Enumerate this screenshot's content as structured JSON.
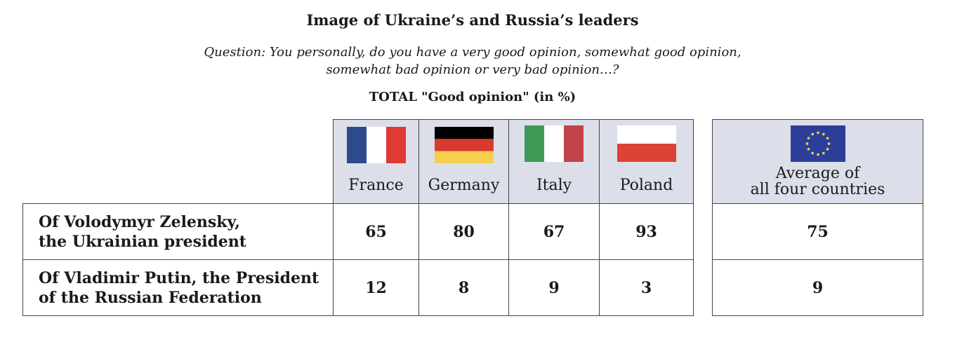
{
  "title": "Image of Ukraine’s and Russia’s leaders",
  "question_line1": "Question: You personally, do you have a very good opinion, somewhat good opinion,",
  "question_line2": "somewhat bad opinion or very bad opinion…?",
  "subtitle": "TOTAL \"Good opinion\" (in %)",
  "colors": {
    "header_bg": "#dcdfe9",
    "france": [
      "#2f4a8c",
      "#ffffff",
      "#e03a33"
    ],
    "germany": [
      "#000000",
      "#d93a2e",
      "#f5cf4c"
    ],
    "italy": [
      "#3f9a58",
      "#ffffff",
      "#c2424a"
    ],
    "poland": [
      "#ffffff",
      "#dd4236"
    ],
    "eu": "#2b3f9a"
  },
  "chart_data": {
    "type": "table",
    "title": "Image of Ukraine’s and Russia’s leaders",
    "columns": [
      "France",
      "Germany",
      "Italy",
      "Poland",
      "Average of all four countries"
    ],
    "avg_label_line1": "Average of",
    "avg_label_line2": "all four countries",
    "rows": [
      {
        "label_line1": "Of Volodymyr Zelensky,",
        "label_line2": "the Ukrainian president",
        "values": [
          "65",
          "80",
          "67",
          "93"
        ],
        "average": "75"
      },
      {
        "label_line1": "Of Vladimir Putin, the President",
        "label_line2": "of the Russian Federation",
        "values": [
          "12",
          "8",
          "9",
          "3"
        ],
        "average": "9"
      }
    ],
    "unit": "%"
  }
}
